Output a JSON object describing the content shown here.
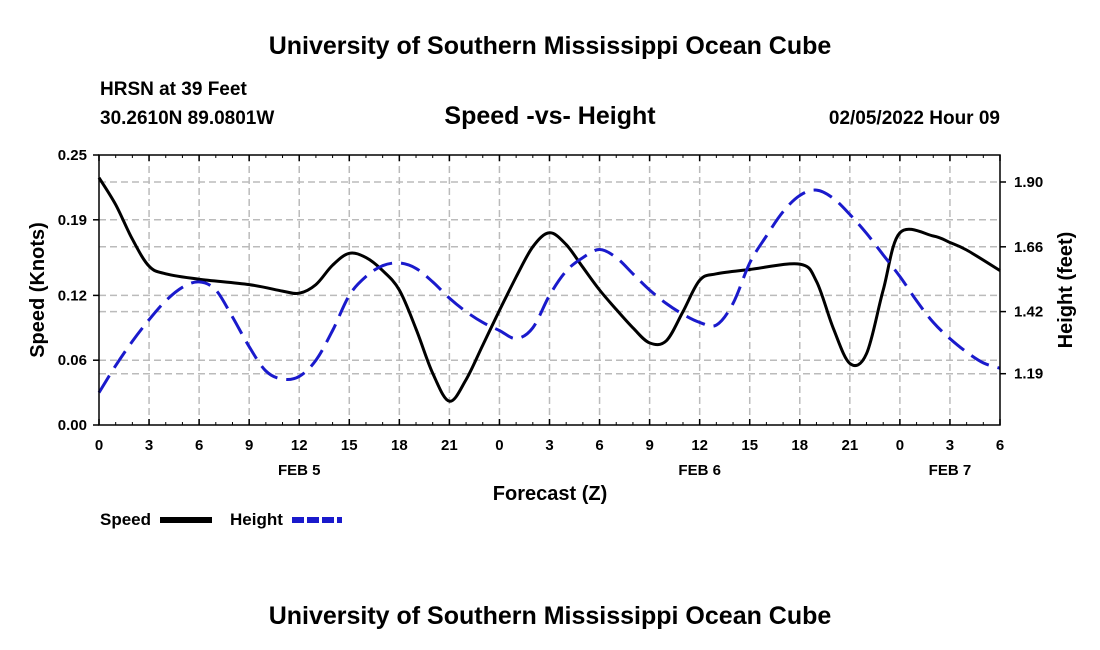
{
  "page": {
    "title_top": "University of Southern Mississippi Ocean Cube",
    "title_bottom": "University of Southern Mississippi Ocean Cube"
  },
  "header": {
    "station": "HRSN at 39 Feet",
    "coords": "30.2610N  89.0801W",
    "datetime": "02/05/2022 Hour 09"
  },
  "colors": {
    "speed": "#000000",
    "height": "#1a1acc",
    "grid": "#bbbbbb"
  },
  "chart_data": {
    "type": "line",
    "title": "Speed -vs- Height",
    "xlabel": "Forecast (Z)",
    "ylabel": "Speed (Knots)",
    "y2label": "Height (feet)",
    "x_range": [
      0,
      54
    ],
    "x_ticks": [
      0,
      3,
      6,
      9,
      12,
      15,
      18,
      21,
      24,
      27,
      30,
      33,
      36,
      39,
      42,
      45,
      48,
      51,
      54
    ],
    "x_tick_labels": [
      "0",
      "3",
      "6",
      "9",
      "12",
      "15",
      "18",
      "21",
      "0",
      "3",
      "6",
      "9",
      "12",
      "15",
      "18",
      "21",
      "0",
      "3",
      "6"
    ],
    "day_labels": [
      {
        "x": 12,
        "label": "FEB 5"
      },
      {
        "x": 36,
        "label": "FEB 6"
      },
      {
        "x": 51,
        "label": "FEB 7"
      }
    ],
    "ylim": [
      0,
      0.25
    ],
    "y_ticks": [
      0.0,
      0.06,
      0.12,
      0.19,
      0.25
    ],
    "y_tick_labels": [
      "0.00",
      "0.06",
      "0.12",
      "0.19",
      "0.25"
    ],
    "y2lim": [
      1.0,
      2.0
    ],
    "y2_ticks": [
      1.19,
      1.42,
      1.66,
      1.9
    ],
    "y2_tick_labels": [
      "1.19",
      "1.42",
      "1.66",
      "1.90"
    ],
    "legend": [
      {
        "name": "Speed",
        "style": "solid"
      },
      {
        "name": "Height",
        "style": "dashed"
      }
    ],
    "series": [
      {
        "name": "Speed",
        "axis": "left",
        "x": [
          0,
          1,
          2,
          3,
          4,
          6,
          9,
          11,
          12,
          13,
          14,
          15,
          16,
          17,
          18,
          19,
          20,
          21,
          22,
          23,
          24,
          25,
          26,
          27,
          28,
          29,
          30,
          31,
          32,
          33,
          34,
          35,
          36,
          37,
          39,
          42,
          43,
          44,
          45,
          46,
          47,
          48,
          50,
          51,
          52,
          54
        ],
        "values": [
          0.229,
          0.204,
          0.172,
          0.147,
          0.14,
          0.135,
          0.13,
          0.124,
          0.122,
          0.13,
          0.148,
          0.159,
          0.155,
          0.143,
          0.125,
          0.089,
          0.048,
          0.022,
          0.042,
          0.074,
          0.106,
          0.137,
          0.165,
          0.178,
          0.167,
          0.146,
          0.125,
          0.107,
          0.09,
          0.076,
          0.078,
          0.105,
          0.134,
          0.14,
          0.144,
          0.149,
          0.133,
          0.09,
          0.057,
          0.066,
          0.125,
          0.178,
          0.175,
          0.169,
          0.162,
          0.143
        ]
      },
      {
        "name": "Height",
        "axis": "right",
        "x": [
          0,
          1,
          2,
          3,
          4,
          5,
          6,
          7,
          8,
          9,
          10,
          11,
          12,
          13,
          14,
          15,
          16,
          17,
          18,
          19,
          20,
          21,
          22,
          23,
          24,
          25,
          26,
          27,
          28,
          29,
          30,
          31,
          32,
          33,
          34,
          35,
          36,
          37,
          38,
          39,
          40,
          41,
          42,
          43,
          44,
          45,
          46,
          47,
          48,
          49,
          50,
          51,
          52,
          53,
          54
        ],
        "values": [
          1.12,
          1.22,
          1.31,
          1.39,
          1.46,
          1.51,
          1.53,
          1.5,
          1.4,
          1.29,
          1.2,
          1.17,
          1.18,
          1.24,
          1.35,
          1.48,
          1.55,
          1.59,
          1.6,
          1.58,
          1.53,
          1.47,
          1.42,
          1.38,
          1.35,
          1.32,
          1.36,
          1.48,
          1.57,
          1.62,
          1.65,
          1.62,
          1.56,
          1.5,
          1.45,
          1.41,
          1.38,
          1.37,
          1.45,
          1.6,
          1.7,
          1.79,
          1.85,
          1.87,
          1.84,
          1.78,
          1.71,
          1.63,
          1.55,
          1.46,
          1.38,
          1.32,
          1.27,
          1.23,
          1.21
        ]
      }
    ]
  }
}
